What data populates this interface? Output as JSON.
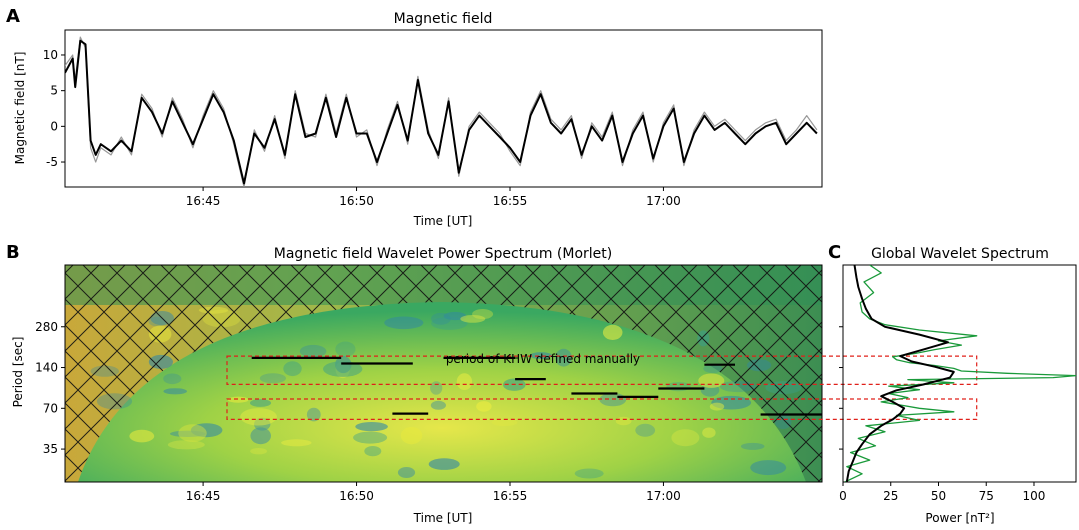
{
  "chart_data": [
    {
      "panel": "A",
      "type": "line",
      "title": "Magnetic field",
      "xlabel": "Time [UT]",
      "ylabel": "Magnetic field [nT]",
      "xticks": [
        "16:45",
        "16:50",
        "16:55",
        "17:00"
      ],
      "xlim": [
        "16:40:30",
        "17:05:10"
      ],
      "yticks": [
        -5,
        0,
        5,
        10
      ],
      "ylim": [
        -8.5,
        13.5
      ],
      "grid": false,
      "series": [
        {
          "color": "#000000",
          "x": [
            "16:40:30",
            "16:40:45",
            "16:40:50",
            "16:41:00",
            "16:41:10",
            "16:41:20",
            "16:41:30",
            "16:41:40",
            "16:42:00",
            "16:42:20",
            "16:42:40",
            "16:43:00",
            "16:43:20",
            "16:43:40",
            "16:44:00",
            "16:44:20",
            "16:44:40",
            "16:45:00",
            "16:45:20",
            "16:45:40",
            "16:46:00",
            "16:46:20",
            "16:46:40",
            "16:47:00",
            "16:47:20",
            "16:47:40",
            "16:48:00",
            "16:48:20",
            "16:48:40",
            "16:49:00",
            "16:49:20",
            "16:49:40",
            "16:50:00",
            "16:50:20",
            "16:50:40",
            "16:51:00",
            "16:51:20",
            "16:51:40",
            "16:52:00",
            "16:52:20",
            "16:52:40",
            "16:53:00",
            "16:53:20",
            "16:53:40",
            "16:54:00",
            "16:54:20",
            "16:54:40",
            "16:55:00",
            "16:55:20",
            "16:55:40",
            "16:56:00",
            "16:56:20",
            "16:56:40",
            "16:57:00",
            "16:57:20",
            "16:57:40",
            "16:58:00",
            "16:58:20",
            "16:58:40",
            "16:59:00",
            "16:59:20",
            "16:59:40",
            "17:00:00",
            "17:00:20",
            "17:00:40",
            "17:01:00",
            "17:01:20",
            "17:01:40",
            "17:02:00",
            "17:02:20",
            "17:02:40",
            "17:03:00",
            "17:03:20",
            "17:03:40",
            "17:04:00",
            "17:04:20",
            "17:04:40",
            "17:05:00"
          ],
          "y": [
            7.5,
            9.5,
            5.5,
            12.0,
            11.5,
            -2.0,
            -4.0,
            -2.5,
            -3.5,
            -2.0,
            -3.5,
            4.0,
            2.0,
            -1.0,
            3.5,
            0.5,
            -2.5,
            1.0,
            4.5,
            2.0,
            -2.0,
            -8.0,
            -1.0,
            -3.0,
            1.0,
            -4.0,
            4.5,
            -1.5,
            -1.0,
            4.0,
            -1.5,
            4.0,
            -1.0,
            -1.0,
            -5.0,
            -1.0,
            3.0,
            -2.0,
            6.5,
            -1.0,
            -4.0,
            3.5,
            -6.5,
            -0.5,
            1.5,
            0.0,
            -1.5,
            -3.0,
            -5.0,
            1.5,
            4.5,
            0.5,
            -1.0,
            1.0,
            -4.0,
            0.0,
            -2.0,
            1.5,
            -5.0,
            -1.0,
            1.5,
            -4.5,
            0.0,
            2.5,
            -5.0,
            -1.0,
            1.5,
            -0.5,
            0.5,
            -1.0,
            -2.5,
            -1.0,
            0.0,
            0.5,
            -2.5,
            -1.0,
            0.5,
            -1.0
          ]
        },
        {
          "color": "#999999",
          "x": [
            "16:40:30",
            "16:40:45",
            "16:40:50",
            "16:41:00",
            "16:41:10",
            "16:41:20",
            "16:41:30",
            "16:41:40",
            "16:42:00",
            "16:42:20",
            "16:42:40",
            "16:43:00",
            "16:43:20",
            "16:43:40",
            "16:44:00",
            "16:44:20",
            "16:44:40",
            "16:45:00",
            "16:45:20",
            "16:45:40",
            "16:46:00",
            "16:46:20",
            "16:46:40",
            "16:47:00",
            "16:47:20",
            "16:47:40",
            "16:48:00",
            "16:48:20",
            "16:48:40",
            "16:49:00",
            "16:49:20",
            "16:49:40",
            "16:50:00",
            "16:50:20",
            "16:50:40",
            "16:51:00",
            "16:51:20",
            "16:51:40",
            "16:52:00",
            "16:52:20",
            "16:52:40",
            "16:53:00",
            "16:53:20",
            "16:53:40",
            "16:54:00",
            "16:54:20",
            "16:54:40",
            "16:55:00",
            "16:55:20",
            "16:55:40",
            "16:56:00",
            "16:56:20",
            "16:56:40",
            "16:57:00",
            "16:57:20",
            "16:57:40",
            "16:58:00",
            "16:58:20",
            "16:58:40",
            "16:59:00",
            "16:59:20",
            "16:59:40",
            "17:00:00",
            "17:00:20",
            "17:00:40",
            "17:01:00",
            "17:01:20",
            "17:01:40",
            "17:02:00",
            "17:02:20",
            "17:02:40",
            "17:03:00",
            "17:03:20",
            "17:03:40",
            "17:04:00",
            "17:04:20",
            "17:04:40",
            "17:05:00"
          ],
          "y": [
            8.5,
            10.0,
            6.5,
            12.5,
            11.0,
            -3.0,
            -5.0,
            -3.0,
            -4.0,
            -1.5,
            -4.0,
            4.5,
            2.5,
            -1.5,
            4.0,
            1.0,
            -3.0,
            1.5,
            5.0,
            2.5,
            -2.5,
            -8.5,
            -0.5,
            -3.5,
            1.5,
            -4.5,
            5.0,
            -1.0,
            -1.5,
            4.5,
            -1.0,
            4.5,
            -1.5,
            -0.5,
            -5.5,
            -0.5,
            3.5,
            -2.5,
            7.0,
            -0.5,
            -4.5,
            4.0,
            -7.0,
            0.0,
            2.0,
            0.5,
            -1.0,
            -3.5,
            -5.5,
            2.0,
            5.0,
            1.0,
            -0.5,
            1.5,
            -4.5,
            0.5,
            -1.5,
            2.0,
            -5.5,
            -0.5,
            2.0,
            -5.0,
            0.5,
            3.0,
            -5.5,
            -0.5,
            2.0,
            0.0,
            1.0,
            -0.5,
            -2.0,
            -0.5,
            0.5,
            1.0,
            -2.0,
            -0.5,
            1.5,
            -0.5
          ]
        }
      ]
    },
    {
      "panel": "B",
      "type": "heatmap",
      "title": "Magnetic field Wavelet Power Spectrum (Morlet)",
      "xlabel": "Time [UT]",
      "ylabel": "Period [sec]",
      "xticks": [
        "16:45",
        "16:50",
        "16:55",
        "17:00"
      ],
      "xlim": [
        "16:40:30",
        "17:05:10"
      ],
      "yticks": [
        35,
        70,
        140,
        280
      ],
      "y_scale": "log2",
      "ylim": [
        20,
        800
      ],
      "annotation": "period of KHW defined manually",
      "colors": {
        "low": "#2e7f9e",
        "mid": "#4dbb6a",
        "high": "#e8e838"
      },
      "cone_of_influence": true,
      "hatched_outside_coi": true,
      "khw_bands": [
        {
          "period_min": 105,
          "period_max": 170
        },
        {
          "period_min": 58,
          "period_max": 82
        }
      ],
      "khw_segments": [
        {
          "t0": "16:46:35",
          "t1": "16:49:30",
          "period": 165
        },
        {
          "t0": "16:49:30",
          "t1": "16:51:50",
          "period": 150
        },
        {
          "t0": "16:52:50",
          "t1": "16:55:10",
          "period": 165
        },
        {
          "t0": "16:55:10",
          "t1": "16:56:10",
          "period": 115
        },
        {
          "t0": "16:57:00",
          "t1": "16:58:30",
          "period": 90
        },
        {
          "t0": "16:58:30",
          "t1": "16:59:50",
          "period": 85
        },
        {
          "t0": "16:59:50",
          "t1": "17:01:20",
          "period": 98
        },
        {
          "t0": "17:01:20",
          "t1": "17:02:20",
          "period": 147
        },
        {
          "t0": "16:51:10",
          "t1": "16:52:20",
          "period": 64
        },
        {
          "t0": "17:03:10",
          "t1": "17:05:10",
          "period": 63
        }
      ]
    },
    {
      "panel": "C",
      "type": "line",
      "title": "Global Wavelet Spectrum",
      "xlabel": "Power [nT²]",
      "xticks": [
        0,
        25,
        50,
        75,
        100
      ],
      "xlim": [
        0,
        122
      ],
      "y_scale": "log2",
      "ylim": [
        20,
        800
      ],
      "series": [
        {
          "color": "#000000",
          "period": [
            20,
            24,
            28,
            33,
            38,
            45,
            52,
            58,
            64,
            70,
            78,
            86,
            95,
            105,
            118,
            130,
            142,
            155,
            170,
            190,
            215,
            245,
            280,
            320,
            380,
            450,
            550,
            650,
            800
          ],
          "power": [
            2,
            3,
            5,
            7,
            10,
            14,
            20,
            26,
            30,
            32,
            26,
            20,
            28,
            42,
            56,
            58,
            48,
            36,
            30,
            42,
            55,
            40,
            22,
            15,
            12,
            10,
            8,
            7,
            6
          ]
        },
        {
          "color": "#1a9a3a",
          "period": [
            20,
            23,
            26,
            29,
            33,
            37,
            42,
            47,
            52,
            57,
            62,
            66,
            70,
            74,
            78,
            84,
            90,
            96,
            102,
            108,
            114,
            118,
            122,
            127,
            132,
            138,
            145,
            152,
            160,
            168,
            178,
            190,
            205,
            220,
            240,
            265,
            290,
            320,
            360,
            420,
            500,
            600,
            700,
            800
          ],
          "power": [
            1,
            10,
            2,
            14,
            4,
            17,
            8,
            22,
            12,
            40,
            28,
            58,
            40,
            30,
            20,
            34,
            24,
            40,
            24,
            58,
            34,
            110,
            122,
            86,
            62,
            58,
            48,
            35,
            28,
            26,
            38,
            48,
            62,
            50,
            70,
            40,
            22,
            14,
            10,
            9,
            16,
            11,
            20,
            14
          ]
        }
      ]
    }
  ]
}
